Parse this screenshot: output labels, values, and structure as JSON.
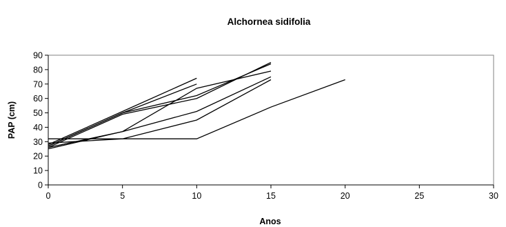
{
  "chart_data": {
    "type": "line",
    "title": "Alchornea sidifolia",
    "xlabel": "Anos",
    "ylabel": "PAP (cm)",
    "xlim": [
      0,
      30
    ],
    "ylim": [
      0,
      90
    ],
    "x_ticks": [
      "0",
      "5",
      "10",
      "15",
      "20",
      "25",
      "30"
    ],
    "y_ticks": [
      "0",
      "10",
      "20",
      "30",
      "40",
      "50",
      "60",
      "70",
      "80",
      "90"
    ],
    "grid": false,
    "legend": "none",
    "line_color": "#000000",
    "series": [
      {
        "x": [
          0,
          5,
          10
        ],
        "values": [
          28,
          51,
          74
        ]
      },
      {
        "x": [
          0,
          5,
          10
        ],
        "values": [
          27,
          50,
          70
        ]
      },
      {
        "x": [
          0,
          5,
          10,
          15
        ],
        "values": [
          26,
          49,
          60,
          85
        ]
      },
      {
        "x": [
          0,
          5,
          10,
          15
        ],
        "values": [
          27,
          50,
          62,
          84
        ]
      },
      {
        "x": [
          0,
          5,
          10,
          15
        ],
        "values": [
          25,
          37,
          67,
          79
        ]
      },
      {
        "x": [
          0,
          5,
          10,
          15
        ],
        "values": [
          26,
          37,
          51,
          75
        ]
      },
      {
        "x": [
          0,
          5,
          10,
          15
        ],
        "values": [
          29,
          32,
          45,
          73
        ]
      },
      {
        "x": [
          0,
          5,
          10,
          15,
          20
        ],
        "values": [
          32,
          32,
          32,
          54,
          73
        ]
      }
    ]
  }
}
